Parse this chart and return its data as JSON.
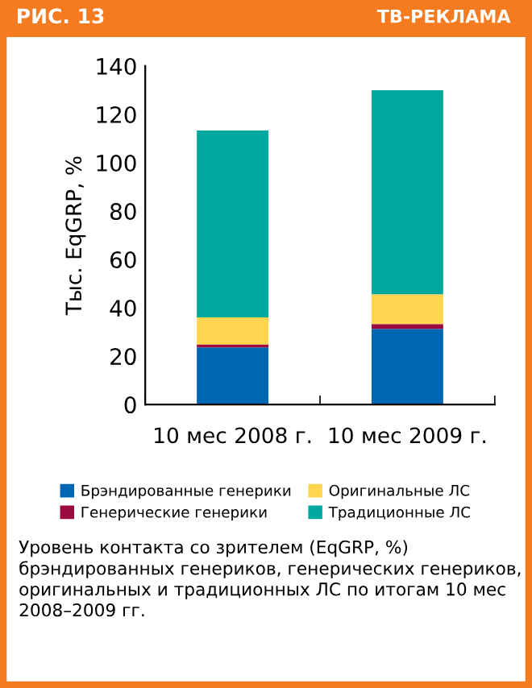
{
  "chart_data": {
    "type": "bar",
    "stacked": true,
    "title": "РИС. 13",
    "subtitle": "ТВ-РЕКЛАМА",
    "ylabel": "Тыс. EqGRP, %",
    "categories": [
      "10 мес 2008 г.",
      "10 мес 2009 г."
    ],
    "series": [
      {
        "name": "Брэндированные генерики",
        "color": "#0066b3",
        "values": [
          23.6,
          31.3
        ]
      },
      {
        "name": "Генерические генерики",
        "color": "#9b0b3f",
        "values": [
          1.3,
          2.0
        ]
      },
      {
        "name": "Оригинальные ЛС",
        "color": "#ffd54f",
        "values": [
          11.1,
          12.3
        ]
      },
      {
        "name": "Традиционные ЛС",
        "color": "#00a99d",
        "values": [
          77.3,
          84.4
        ]
      }
    ],
    "ylim": [
      0,
      140
    ],
    "yticks": [
      0,
      20,
      40,
      60,
      80,
      100,
      120,
      140
    ],
    "grid": false,
    "legend": "bottom",
    "annotations": [
      "Уровень контакта со зрителем (EqGRP, %) брэндированных генериков, генерических генериков, оригинальных и традиционных ЛС по итогам 10 мес 2008–2009 гг."
    ]
  }
}
